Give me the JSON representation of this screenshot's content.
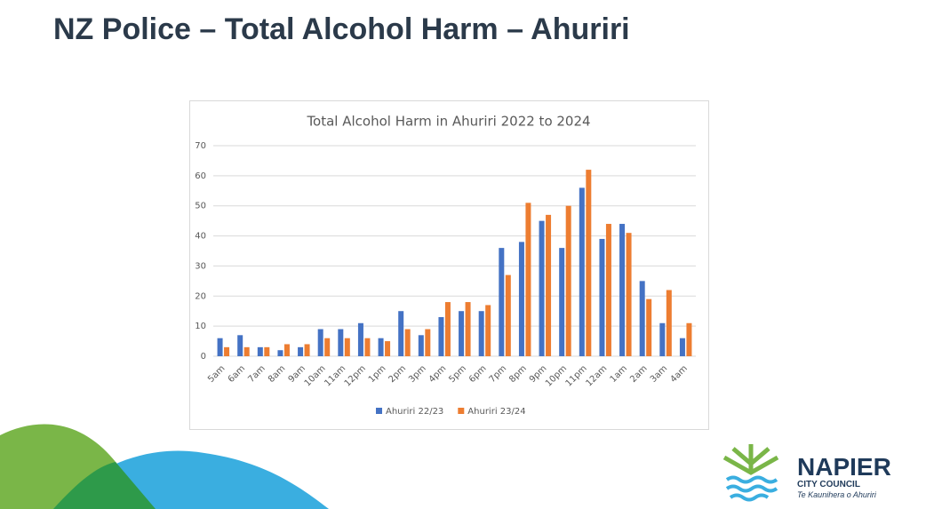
{
  "slide_title": "NZ Police – Total Alcohol Harm – Ahuriri",
  "chart_data": {
    "type": "bar",
    "title": "Total Alcohol Harm in Ahuriri 2022 to 2024",
    "categories": [
      "5am",
      "6am",
      "7am",
      "8am",
      "9am",
      "10am",
      "11am",
      "12pm",
      "1pm",
      "2pm",
      "3pm",
      "4pm",
      "5pm",
      "6pm",
      "7pm",
      "8pm",
      "9pm",
      "10pm",
      "11pm",
      "12am",
      "1am",
      "2am",
      "3am",
      "4am"
    ],
    "series": [
      {
        "name": "Ahuriri 22/23",
        "color": "#4472c4",
        "values": [
          6,
          7,
          3,
          2,
          3,
          9,
          9,
          11,
          6,
          15,
          7,
          13,
          15,
          15,
          36,
          38,
          45,
          36,
          56,
          39,
          44,
          25,
          11,
          6
        ]
      },
      {
        "name": "Ahuriri 23/24",
        "color": "#ed7d31",
        "values": [
          3,
          3,
          3,
          4,
          4,
          6,
          6,
          6,
          5,
          9,
          9,
          18,
          18,
          17,
          27,
          51,
          47,
          50,
          62,
          44,
          41,
          19,
          22,
          11
        ]
      }
    ],
    "ylim": [
      0,
      70
    ],
    "yticks": [
      0,
      10,
      20,
      30,
      40,
      50,
      60,
      70
    ],
    "grid": true,
    "legend": "bottom"
  },
  "logo": {
    "name": "NAPIER",
    "line2": "CITY COUNCIL",
    "tagline": "Te Kaunihera o Ahuriri"
  }
}
